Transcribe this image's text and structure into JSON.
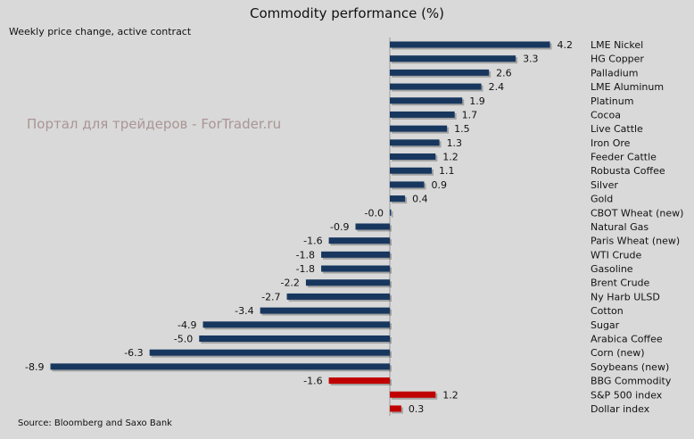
{
  "chart_data": {
    "type": "bar",
    "orientation": "horizontal",
    "title": "Commodity performance (%)",
    "subtitle": "Weekly price change, active contract",
    "source": "Source: Bloomberg and Saxo Bank",
    "watermark": "Портал для трейдеров - ForTrader.ru",
    "colors": {
      "commodity": "#17375e",
      "benchmark": "#c00000",
      "background": "#d9d9d9"
    },
    "xlim": [
      -8.9,
      4.2
    ],
    "grid": false,
    "categories": [
      "LME Nickel",
      "HG Copper",
      "Palladium",
      "LME Aluminum",
      "Platinum",
      "Cocoa",
      "Live Cattle",
      "Iron Ore",
      "Feeder Cattle",
      "Robusta Coffee",
      "Silver",
      "Gold",
      "CBOT Wheat (new)",
      "Natural Gas",
      "Paris Wheat (new)",
      "WTI Crude",
      "Gasoline",
      "Brent Crude",
      "Ny Harb ULSD",
      "Cotton",
      "Sugar",
      "Arabica Coffee",
      "Corn (new)",
      "Soybeans (new)",
      "BBG Commodity",
      "S&P 500 index",
      "Dollar index"
    ],
    "values": [
      4.2,
      3.3,
      2.6,
      2.4,
      1.9,
      1.7,
      1.5,
      1.3,
      1.2,
      1.1,
      0.9,
      0.4,
      -0.0,
      -0.9,
      -1.6,
      -1.8,
      -1.8,
      -2.2,
      -2.7,
      -3.4,
      -4.9,
      -5.0,
      -6.3,
      -8.9,
      -1.6,
      1.2,
      0.3
    ],
    "labels": [
      "4.2",
      "3.3",
      "2.6",
      "2.4",
      "1.9",
      "1.7",
      "1.5",
      "1.3",
      "1.2",
      "1.1",
      "0.9",
      "0.4",
      "-0.0",
      "-0.9",
      "-1.6",
      "-1.8",
      "-1.8",
      "-2.2",
      "-2.7",
      "-3.4",
      "-4.9",
      "-5.0",
      "-6.3",
      "-8.9",
      "-1.6",
      "1.2",
      "0.3"
    ],
    "group": [
      "commodity",
      "commodity",
      "commodity",
      "commodity",
      "commodity",
      "commodity",
      "commodity",
      "commodity",
      "commodity",
      "commodity",
      "commodity",
      "commodity",
      "commodity",
      "commodity",
      "commodity",
      "commodity",
      "commodity",
      "commodity",
      "commodity",
      "commodity",
      "commodity",
      "commodity",
      "commodity",
      "commodity",
      "benchmark",
      "benchmark",
      "benchmark"
    ]
  }
}
